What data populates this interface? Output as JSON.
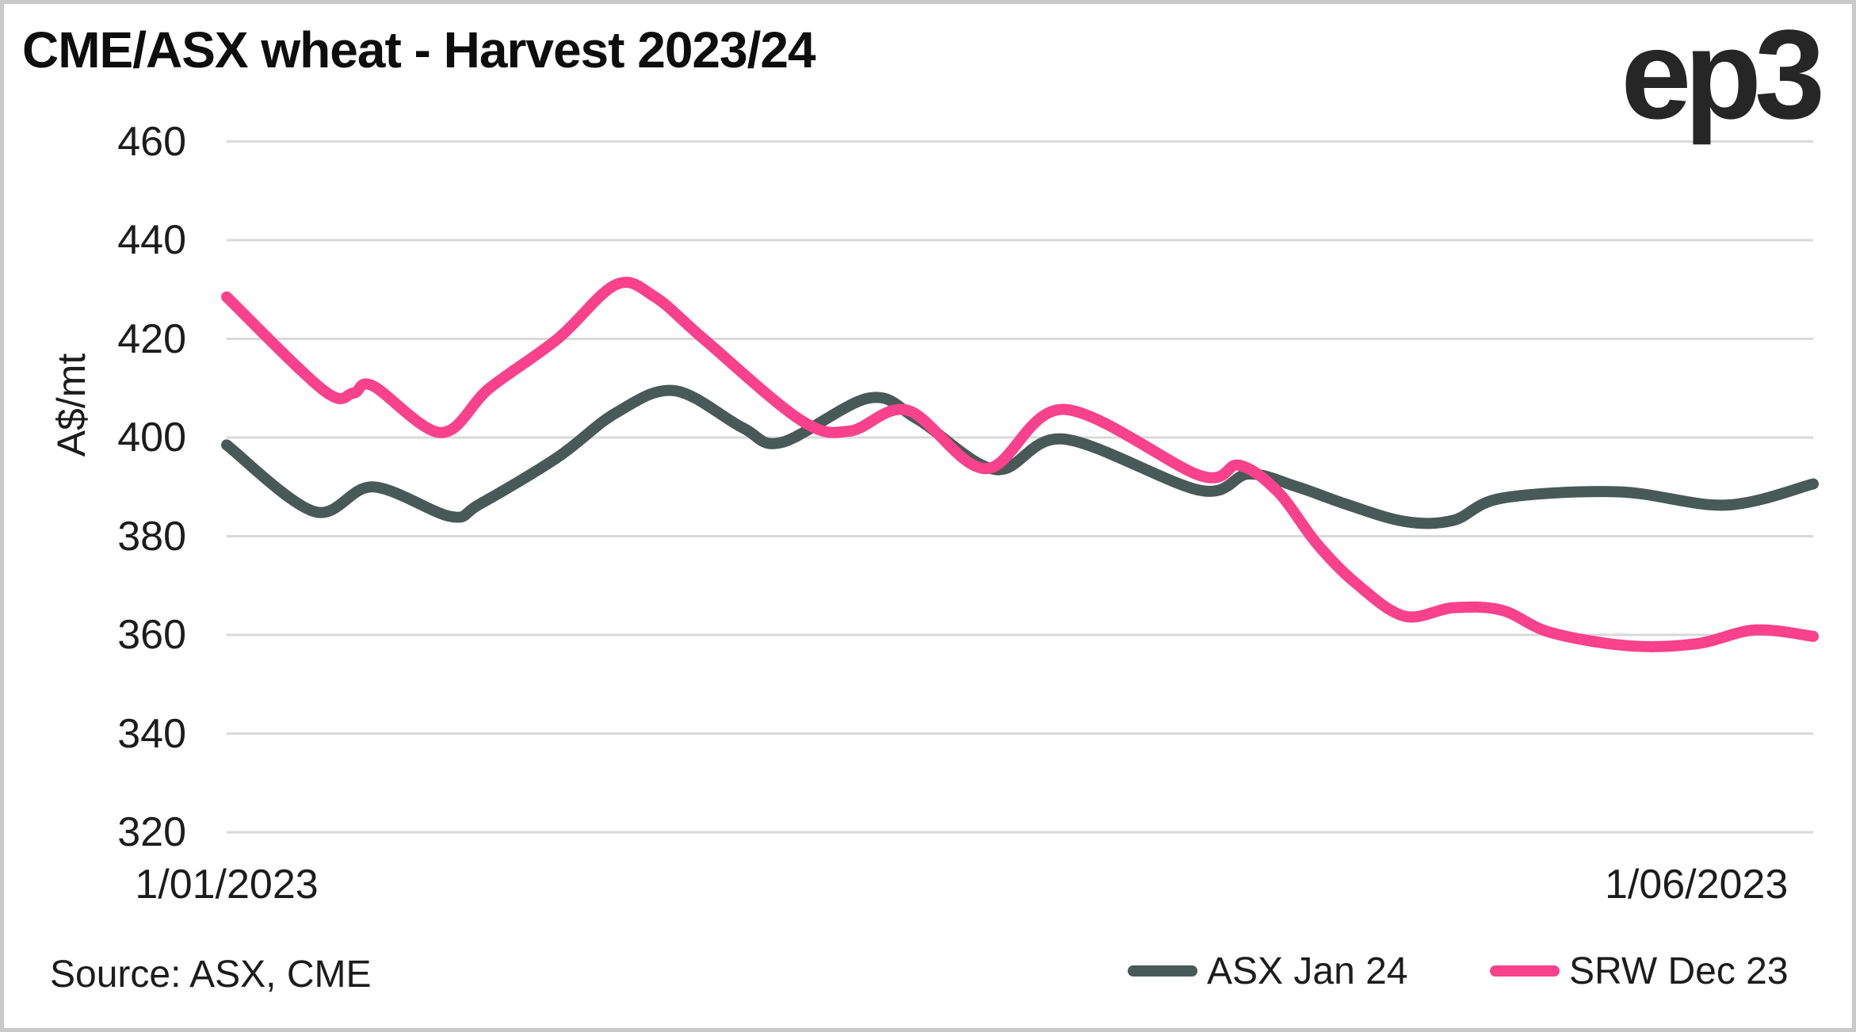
{
  "title": "CME/ASX wheat - Harvest 2023/24",
  "logo": "ep3",
  "source": "Source: ASX, CME",
  "colors": {
    "asx_line": "#485A57",
    "srw_line": "#F9418C",
    "gridline": "#D9D9D9",
    "frame": "#C9C9C9",
    "text": "#1C1C1C"
  },
  "y_axis": {
    "label": "A$/mt",
    "ticks": [
      460,
      440,
      420,
      400,
      380,
      360,
      340,
      320
    ],
    "min": 320,
    "max": 460
  },
  "x_axis": {
    "ticks": [
      {
        "label": "1/01/2023",
        "day": 0
      },
      {
        "label": "1/06/2023",
        "day": 151
      }
    ]
  },
  "legend": {
    "items": [
      {
        "label": "ASX Jan 24",
        "color": "#485A57"
      },
      {
        "label": "SRW Dec 23",
        "color": "#F9418C"
      }
    ]
  },
  "chart_data": {
    "type": "line",
    "title": "CME/ASX wheat - Harvest 2023/24",
    "xlabel": "",
    "ylabel": "A$/mt",
    "ylim": [
      320,
      460
    ],
    "x_domain_days": 163,
    "x_start_date": "1/01/2023",
    "x_end_label": "1/06/2023",
    "grid": "horizontal",
    "legend_position": "bottom-right",
    "units": "A$/mt",
    "series": [
      {
        "id": "asx",
        "name": "ASX Jan 24",
        "color": "#485A57",
        "days": [
          0,
          9,
          15,
          23,
          26,
          34,
          40,
          46,
          53,
          57,
          66,
          71,
          79,
          86,
          100,
          105,
          110,
          115,
          121,
          126,
          131,
          143,
          154,
          163
        ],
        "values": [
          398.5,
          385,
          390,
          384,
          386.5,
          396,
          405,
          409.5,
          402,
          399,
          408,
          403.7,
          393.5,
          399.7,
          389.3,
          392.6,
          390,
          386.5,
          383,
          383.2,
          387.7,
          389,
          386.3,
          390.6
        ]
      },
      {
        "id": "srw",
        "name": "SRW Dec 23",
        "color": "#F9418C",
        "days": [
          0,
          10,
          13,
          15,
          22,
          27,
          34,
          40,
          44,
          49,
          59,
          64,
          70,
          78,
          86,
          100,
          104,
          108,
          112,
          116,
          121,
          126,
          131,
          136,
          144,
          151,
          157,
          163
        ],
        "values": [
          428.5,
          409.5,
          409,
          410.5,
          401,
          410,
          420,
          431,
          428.5,
          420,
          403.5,
          401.3,
          405.5,
          393.7,
          405.7,
          392.3,
          394.4,
          389,
          378.5,
          370.5,
          363.8,
          365.5,
          365,
          360.5,
          357.8,
          358.2,
          361,
          359.7
        ]
      }
    ]
  }
}
